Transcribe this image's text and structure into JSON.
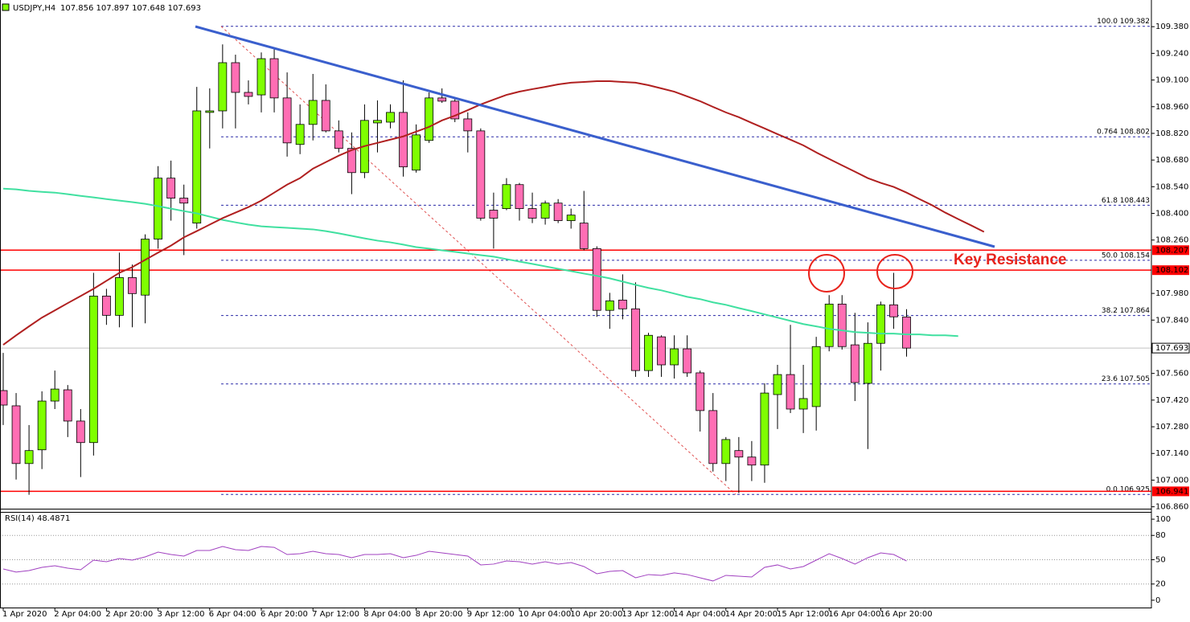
{
  "chart_data": [
    {
      "type": "candlestick",
      "title": "USDJPY,H4",
      "subtitle": "107.856 107.897 107.648 107.693",
      "annotations": [
        "Key Resistance"
      ],
      "up_color": "#7fff00",
      "down_color": "#ff6eb4",
      "categories": [
        "1 Apr 2020",
        null,
        null,
        null,
        "2 Apr 04:00",
        null,
        null,
        null,
        "2 Apr 20:00",
        null,
        null,
        null,
        "3 Apr 12:00",
        null,
        null,
        null,
        "6 Apr 04:00",
        null,
        null,
        null,
        "6 Apr 20:00",
        null,
        null,
        null,
        "7 Apr 12:00",
        null,
        null,
        null,
        "8 Apr 04:00",
        null,
        null,
        null,
        "8 Apr 20:00",
        null,
        null,
        null,
        "9 Apr 12:00",
        null,
        null,
        null,
        "10 Apr 04:00",
        null,
        null,
        null,
        "10 Apr 20:00",
        null,
        null,
        null,
        "13 Apr 12:00",
        null,
        null,
        null,
        "14 Apr 04:00",
        null,
        null,
        null,
        "14 Apr 20:00",
        null,
        null,
        null,
        "15 Apr 12:00",
        null,
        null,
        null,
        "16 Apr 04:00",
        null,
        null,
        null,
        "16 Apr 20:00",
        null,
        null
      ],
      "open": [
        107.47,
        107.39,
        107.087,
        107.159,
        107.415,
        107.474,
        107.31,
        107.197,
        107.966,
        107.865,
        108.063,
        107.971,
        108.265,
        108.585,
        108.48,
        108.349,
        108.93,
        108.938,
        109.191,
        109.035,
        109.022,
        109.212,
        109.006,
        108.762,
        108.867,
        108.993,
        108.833,
        108.741,
        108.614,
        108.875,
        108.879,
        108.93,
        108.627,
        108.783,
        109.006,
        108.989,
        108.896,
        108.833,
        108.417,
        108.425,
        108.551,
        108.425,
        108.375,
        108.454,
        108.362,
        108.349,
        108.215,
        107.891,
        107.945,
        107.899,
        107.575,
        107.752,
        107.605,
        107.689,
        107.563,
        107.365,
        107.087,
        107.155,
        107.121,
        107.079,
        107.449,
        107.554,
        107.373,
        107.386,
        107.701,
        107.924,
        107.71,
        107.508,
        107.718,
        107.92,
        107.856
      ],
      "high": [
        107.668,
        107.457,
        107.289,
        107.466,
        107.575,
        107.499,
        107.373,
        108.088,
        108.004,
        108.194,
        108.131,
        108.29,
        108.648,
        108.677,
        108.551,
        109.064,
        109.056,
        109.287,
        109.233,
        109.098,
        109.245,
        109.266,
        109.14,
        108.972,
        109.132,
        109.077,
        108.888,
        108.825,
        108.972,
        108.993,
        108.972,
        109.098,
        108.867,
        109.035,
        109.056,
        109.006,
        108.93,
        108.846,
        108.509,
        108.585,
        108.56,
        108.509,
        108.467,
        108.475,
        108.425,
        108.518,
        108.227,
        107.983,
        108.08,
        108.038,
        107.773,
        107.76,
        107.76,
        107.76,
        107.575,
        107.457,
        107.226,
        107.226,
        107.205,
        107.508,
        107.605,
        107.815,
        107.605,
        107.752,
        107.971,
        107.971,
        107.878,
        107.828,
        107.937,
        108.088,
        107.897
      ],
      "low": [
        107.289,
        107.003,
        106.923,
        107.058,
        107.373,
        107.226,
        107.016,
        107.129,
        107.815,
        107.802,
        107.802,
        107.823,
        108.215,
        108.362,
        108.181,
        108.32,
        108.741,
        108.846,
        108.846,
        108.972,
        108.93,
        108.93,
        108.698,
        108.711,
        108.783,
        108.825,
        108.72,
        108.501,
        108.585,
        108.72,
        108.846,
        108.593,
        108.614,
        108.77,
        108.98,
        108.879,
        108.72,
        108.362,
        108.215,
        108.417,
        108.362,
        108.349,
        108.341,
        108.349,
        108.32,
        108.206,
        107.857,
        107.794,
        107.844,
        107.542,
        107.542,
        107.542,
        107.533,
        107.542,
        107.255,
        107.045,
        106.995,
        106.932,
        106.995,
        106.986,
        107.268,
        107.352,
        107.247,
        107.26,
        107.676,
        107.685,
        107.415,
        107.163,
        107.575,
        107.794,
        107.648
      ],
      "close": [
        107.394,
        107.087,
        107.155,
        107.415,
        107.478,
        107.31,
        107.197,
        107.966,
        107.865,
        108.063,
        107.979,
        108.265,
        108.585,
        108.48,
        108.454,
        108.938,
        108.938,
        109.191,
        109.035,
        109.014,
        109.212,
        109.006,
        108.77,
        108.867,
        108.993,
        108.833,
        108.741,
        108.614,
        108.888,
        108.888,
        108.93,
        108.644,
        108.812,
        109.006,
        108.989,
        108.896,
        108.833,
        108.375,
        108.375,
        108.551,
        108.425,
        108.375,
        108.454,
        108.362,
        108.391,
        108.215,
        107.891,
        107.941,
        107.899,
        107.575,
        107.76,
        107.605,
        107.689,
        107.563,
        107.365,
        107.087,
        107.213,
        107.121,
        107.079,
        107.457,
        107.554,
        107.373,
        107.428,
        107.701,
        107.924,
        107.701,
        107.512,
        107.718,
        107.92,
        107.857,
        107.693
      ],
      "overlays": [
        {
          "color": "#40e0a0",
          "values": [
            108.53,
            108.526,
            108.518,
            108.513,
            108.509,
            108.501,
            108.492,
            108.484,
            108.475,
            108.467,
            108.459,
            108.45,
            108.438,
            108.425,
            108.412,
            108.4,
            108.383,
            108.366,
            108.353,
            108.341,
            108.332,
            108.328,
            108.324,
            108.32,
            108.316,
            108.307,
            108.295,
            108.282,
            108.269,
            108.257,
            108.248,
            108.236,
            108.223,
            108.215,
            108.206,
            108.198,
            108.189,
            108.181,
            108.173,
            108.16,
            108.147,
            108.135,
            108.122,
            108.109,
            108.097,
            108.084,
            108.072,
            108.059,
            108.042,
            108.025,
            108.009,
            107.996,
            107.979,
            107.962,
            107.95,
            107.933,
            107.92,
            107.903,
            107.887,
            107.87,
            107.853,
            107.836,
            107.819,
            107.807,
            107.794,
            107.786,
            107.777,
            107.773,
            107.769,
            107.769,
            107.765,
            107.765,
            107.76,
            107.76,
            107.756
          ]
        },
        {
          "color": "#b02020",
          "values": [
            107.71,
            107.76,
            107.807,
            107.853,
            107.891,
            107.929,
            107.966,
            108.004,
            108.046,
            108.088,
            108.118,
            108.156,
            108.194,
            108.231,
            108.274,
            108.307,
            108.341,
            108.375,
            108.404,
            108.433,
            108.467,
            108.509,
            108.551,
            108.585,
            108.635,
            108.669,
            108.703,
            108.732,
            108.753,
            108.77,
            108.787,
            108.804,
            108.829,
            108.854,
            108.888,
            108.913,
            108.942,
            108.972,
            108.997,
            109.022,
            109.039,
            109.052,
            109.064,
            109.077,
            109.086,
            109.09,
            109.094,
            109.094,
            109.09,
            109.086,
            109.073,
            109.056,
            109.039,
            109.014,
            108.989,
            108.959,
            108.93,
            108.905,
            108.875,
            108.846,
            108.816,
            108.787,
            108.757,
            108.72,
            108.686,
            108.652,
            108.619,
            108.585,
            108.56,
            108.539,
            108.509,
            108.475,
            108.442,
            108.404,
            108.37,
            108.337,
            108.303
          ]
        }
      ],
      "fib_levels": [
        {
          "label": "100.0 109.382",
          "value": 109.382
        },
        {
          "label": "0.764 108.802",
          "value": 108.802
        },
        {
          "label": "61.8 108.443",
          "value": 108.443
        },
        {
          "label": "50.0 108.154",
          "value": 108.154
        },
        {
          "label": "38.2 107.864",
          "value": 107.864
        },
        {
          "label": "23.6 107.505",
          "value": 107.505
        },
        {
          "label": "0.0 106.925",
          "value": 106.925
        }
      ],
      "fib_color": "#2a2aa8",
      "levels": [
        {
          "value": 108.207,
          "color": "#ff0000"
        },
        {
          "value": 108.102,
          "color": "#ff0000"
        },
        {
          "value": 106.941,
          "color": "#ff0000"
        }
      ],
      "price_line": {
        "value": 107.693,
        "color": "#c0c0c0"
      },
      "ylim": [
        106.85,
        109.52
      ],
      "yticks": [
        {
          "value": 106.86,
          "label": "106.860"
        },
        {
          "value": 107,
          "label": "107.000"
        },
        {
          "value": 107.14,
          "label": "107.140"
        },
        {
          "value": 107.28,
          "label": "107.280"
        },
        {
          "value": 107.42,
          "label": "107.420"
        },
        {
          "value": 107.56,
          "label": "107.560"
        },
        {
          "value": 107.84,
          "label": "107.840"
        },
        {
          "value": 107.98,
          "label": "107.980"
        },
        {
          "value": 108.26,
          "label": "108.260"
        },
        {
          "value": 108.4,
          "label": "108.400"
        },
        {
          "value": 108.54,
          "label": "108.540"
        },
        {
          "value": 108.68,
          "label": "108.680"
        },
        {
          "value": 108.82,
          "label": "108.820"
        },
        {
          "value": 108.96,
          "label": "108.960"
        },
        {
          "value": 109.1,
          "label": "109.100"
        },
        {
          "value": 109.24,
          "label": "109.240"
        },
        {
          "value": 109.38,
          "label": "109.380"
        }
      ],
      "grid": false
    },
    {
      "type": "line",
      "title": "RSI(14) 48.4871",
      "color": "#a040c0",
      "values": [
        38.6,
        34.7,
        36.6,
        40.6,
        42.6,
        39.6,
        37.6,
        49.5,
        47.5,
        51.5,
        49.5,
        53.5,
        59.4,
        56.4,
        54.5,
        61.4,
        61.4,
        66.3,
        62.4,
        61.4,
        66.3,
        65.3,
        56.4,
        57.4,
        60.4,
        57.4,
        56.4,
        52.5,
        56.4,
        56.4,
        57.4,
        52.5,
        55.4,
        60.4,
        58.4,
        56.4,
        54.5,
        43.6,
        44.6,
        48.5,
        47.5,
        44.6,
        47.5,
        44.6,
        46.5,
        41.6,
        32.7,
        35.6,
        36.6,
        27.7,
        31.7,
        30.7,
        33.7,
        31.7,
        27.7,
        23.8,
        30.7,
        29.7,
        28.7,
        40.6,
        43.6,
        38.6,
        41.6,
        49.5,
        57.4,
        51.5,
        44.6,
        52.5,
        58.4,
        56.4,
        48.4871
      ],
      "levels": [
        20,
        50,
        80
      ],
      "ylim": [
        -10,
        109
      ],
      "yticks": [
        0,
        20,
        50,
        80,
        100
      ],
      "grid": false
    }
  ]
}
